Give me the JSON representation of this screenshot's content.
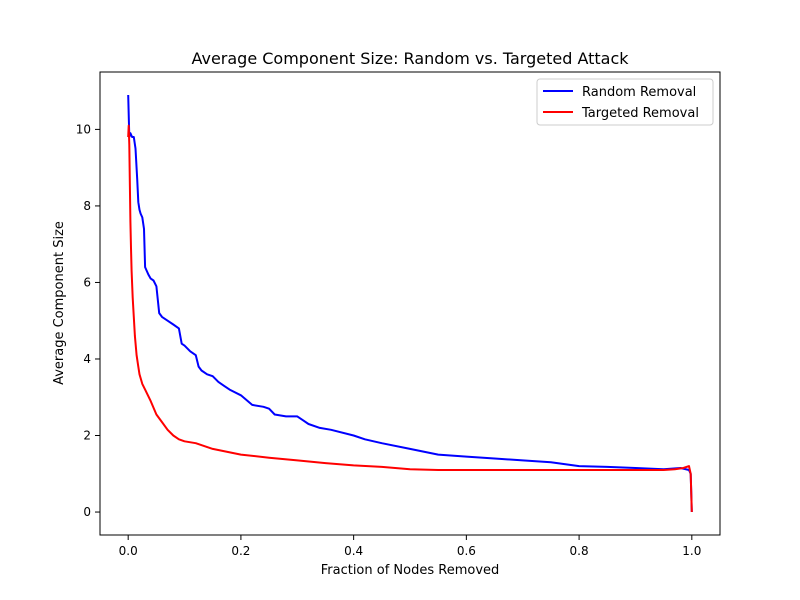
{
  "chart_data": {
    "type": "line",
    "title": "Average Component Size: Random vs. Targeted Attack",
    "xlabel": "Fraction of Nodes Removed",
    "ylabel": "Average Component Size",
    "xlim": [
      -0.05,
      1.05
    ],
    "ylim": [
      -0.6,
      11.5
    ],
    "xticks": [
      {
        "value": 0.0,
        "label": "0.0"
      },
      {
        "value": 0.2,
        "label": "0.2"
      },
      {
        "value": 0.4,
        "label": "0.4"
      },
      {
        "value": 0.6,
        "label": "0.6"
      },
      {
        "value": 0.8,
        "label": "0.8"
      },
      {
        "value": 1.0,
        "label": "1.0"
      }
    ],
    "yticks": [
      {
        "value": 0,
        "label": "0"
      },
      {
        "value": 2,
        "label": "2"
      },
      {
        "value": 4,
        "label": "4"
      },
      {
        "value": 6,
        "label": "6"
      },
      {
        "value": 8,
        "label": "8"
      },
      {
        "value": 10,
        "label": "10"
      }
    ],
    "grid": false,
    "legend_position": "top-right",
    "series": [
      {
        "name": "Random Removal",
        "color": "#0000ff",
        "x": [
          0.0,
          0.002,
          0.004,
          0.007,
          0.01,
          0.013,
          0.016,
          0.018,
          0.02,
          0.022,
          0.025,
          0.028,
          0.03,
          0.033,
          0.036,
          0.04,
          0.045,
          0.05,
          0.055,
          0.06,
          0.065,
          0.07,
          0.08,
          0.09,
          0.095,
          0.1,
          0.11,
          0.12,
          0.125,
          0.13,
          0.14,
          0.15,
          0.16,
          0.17,
          0.18,
          0.2,
          0.22,
          0.24,
          0.25,
          0.26,
          0.28,
          0.3,
          0.31,
          0.32,
          0.34,
          0.36,
          0.4,
          0.42,
          0.45,
          0.5,
          0.55,
          0.6,
          0.65,
          0.7,
          0.75,
          0.8,
          0.85,
          0.9,
          0.95,
          0.98,
          0.995,
          0.998,
          1.0
        ],
        "y": [
          10.9,
          9.8,
          9.9,
          9.8,
          9.8,
          9.5,
          8.7,
          8.1,
          7.9,
          7.8,
          7.7,
          7.4,
          6.4,
          6.3,
          6.2,
          6.1,
          6.05,
          5.9,
          5.2,
          5.1,
          5.05,
          5.0,
          4.9,
          4.8,
          4.4,
          4.35,
          4.2,
          4.1,
          3.8,
          3.7,
          3.6,
          3.55,
          3.4,
          3.3,
          3.2,
          3.05,
          2.8,
          2.75,
          2.7,
          2.55,
          2.5,
          2.5,
          2.4,
          2.3,
          2.2,
          2.15,
          2.0,
          1.9,
          1.8,
          1.65,
          1.5,
          1.45,
          1.4,
          1.35,
          1.3,
          1.2,
          1.18,
          1.15,
          1.12,
          1.15,
          1.1,
          1.0,
          0.0
        ]
      },
      {
        "name": "Targeted Removal",
        "color": "#ff0000",
        "x": [
          0.0,
          0.001,
          0.002,
          0.003,
          0.004,
          0.005,
          0.006,
          0.008,
          0.01,
          0.012,
          0.015,
          0.018,
          0.02,
          0.025,
          0.03,
          0.035,
          0.04,
          0.05,
          0.06,
          0.07,
          0.08,
          0.09,
          0.1,
          0.12,
          0.15,
          0.2,
          0.25,
          0.3,
          0.35,
          0.4,
          0.45,
          0.5,
          0.55,
          0.6,
          0.65,
          0.7,
          0.75,
          0.8,
          0.85,
          0.9,
          0.95,
          0.97,
          0.985,
          0.995,
          0.998,
          1.0
        ],
        "y": [
          9.8,
          10.1,
          9.6,
          8.5,
          7.6,
          6.9,
          6.3,
          5.6,
          5.1,
          4.6,
          4.1,
          3.8,
          3.6,
          3.35,
          3.2,
          3.05,
          2.9,
          2.55,
          2.35,
          2.15,
          2.0,
          1.9,
          1.85,
          1.8,
          1.65,
          1.5,
          1.42,
          1.35,
          1.28,
          1.22,
          1.18,
          1.12,
          1.1,
          1.1,
          1.1,
          1.1,
          1.1,
          1.1,
          1.1,
          1.1,
          1.1,
          1.12,
          1.15,
          1.2,
          1.0,
          0.0
        ]
      }
    ]
  }
}
